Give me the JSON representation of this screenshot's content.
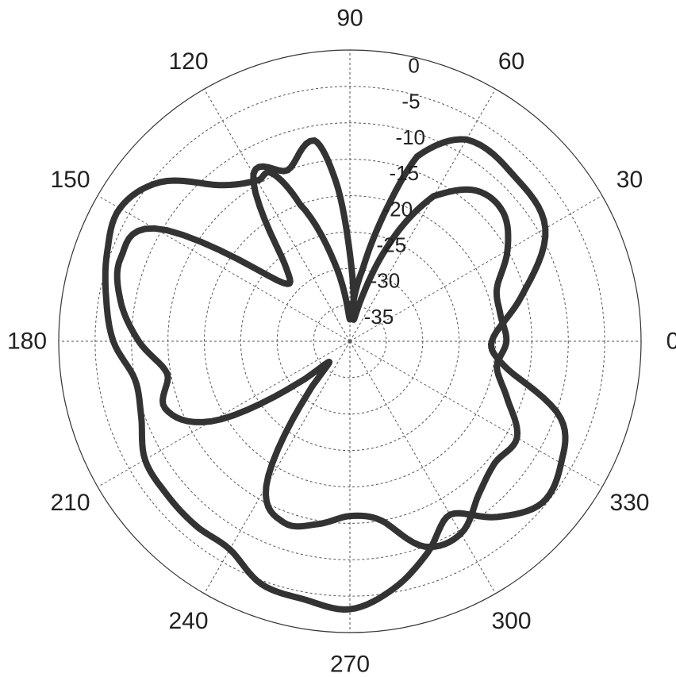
{
  "chart_data": {
    "type": "line",
    "subtype": "polar",
    "title": "",
    "angle_unit": "degrees",
    "angle_ticks": [
      "0",
      "30",
      "60",
      "90",
      "120",
      "150",
      "180",
      "210",
      "240",
      "270",
      "300",
      "330"
    ],
    "radial_ticks": [
      "0",
      "-5",
      "-10",
      "-15",
      "-20",
      "-25",
      "-30",
      "-35"
    ],
    "rlim": [
      -40,
      0
    ],
    "grid": true,
    "line_color": "#333333",
    "series": [
      {
        "theta": [
          0,
          15,
          30,
          45,
          60,
          70,
          75,
          80,
          90,
          100,
          110,
          115,
          120,
          130,
          140,
          150,
          160,
          170,
          180,
          190,
          200,
          210,
          220,
          230,
          240,
          250,
          260,
          270,
          280,
          290,
          300,
          310,
          320,
          330,
          340,
          350,
          360
        ],
        "r": [
          -20.5,
          -15.5,
          -9,
          -8,
          -8,
          -13,
          -22,
          -30,
          -37,
          -30,
          -20,
          -14.5,
          -14.5,
          -12,
          -6,
          -3.5,
          -4.5,
          -6,
          -7.5,
          -10,
          -9.5,
          -7.5,
          -7.2,
          -7,
          -7,
          -4.5,
          -4,
          -3.2,
          -5.5,
          -9,
          -12.5,
          -8.5,
          -5.5,
          -6.5,
          -9.2,
          -18,
          -20.5
        ]
      },
      {
        "theta": [
          0,
          10,
          20,
          30,
          40,
          50,
          60,
          65,
          70,
          75,
          80,
          85,
          90,
          95,
          100,
          110,
          120,
          130,
          140,
          150,
          160,
          170,
          180,
          190,
          200,
          210,
          220,
          225,
          230,
          240,
          250,
          260,
          270,
          280,
          290,
          300,
          310,
          320,
          330,
          340,
          350,
          360
        ],
        "r": [
          -18.5,
          -19,
          -18.5,
          -15,
          -12.5,
          -13,
          -17,
          -22,
          -28,
          -34,
          -37,
          -34,
          -28,
          -18,
          -12,
          -15,
          -13.5,
          -26,
          -27,
          -9,
          -6.5,
          -8,
          -11,
          -14.5,
          -13,
          -18,
          -32,
          -36,
          -32,
          -17,
          -13.5,
          -14.5,
          -16,
          -15,
          -10,
          -9.5,
          -12.5,
          -14,
          -13.5,
          -17,
          -19.5,
          -18.5
        ]
      }
    ]
  }
}
